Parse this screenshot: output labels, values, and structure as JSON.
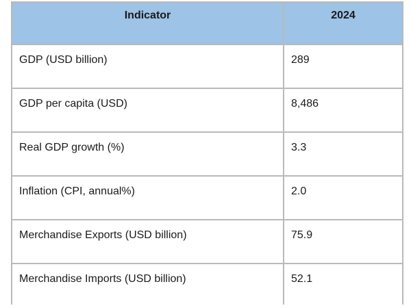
{
  "table": {
    "headers": [
      "Indicator",
      "2024"
    ],
    "rows": [
      {
        "indicator": "GDP (USD billion)",
        "value": "289"
      },
      {
        "indicator": "GDP per capita (USD)",
        "value": "8,486"
      },
      {
        "indicator": "Real GDP growth (%)",
        "value": "3.3"
      },
      {
        "indicator": "Inflation (CPI, annual%)",
        "value": "2.0"
      },
      {
        "indicator": "Merchandise Exports (USD billion)",
        "value": "75.9"
      },
      {
        "indicator": "Merchandise Imports (USD billion)",
        "value": "52.1"
      }
    ]
  },
  "colors": {
    "header_background": "#9dc3e6",
    "border": "#b9b9b9"
  }
}
